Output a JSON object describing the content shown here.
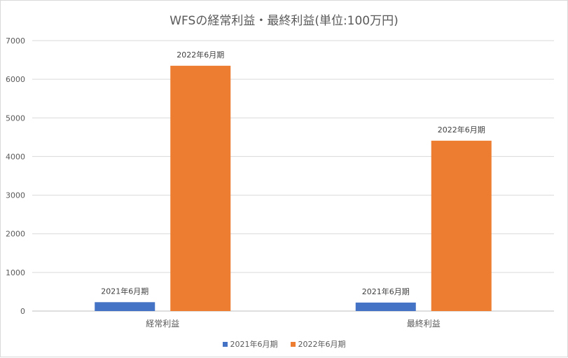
{
  "chart_data": {
    "type": "bar",
    "title": "WFSの経常利益・最終利益(単位:100万円)",
    "categories": [
      "経常利益",
      "最終利益"
    ],
    "series": [
      {
        "name": "2021年6月期",
        "values": [
          230,
          220
        ],
        "color": "#4472c4",
        "data_label": "2021年6月期"
      },
      {
        "name": "2022年6月期",
        "values": [
          6350,
          4410
        ],
        "color": "#ed7d31",
        "data_label": "2022年6月期"
      }
    ],
    "ylim": [
      0,
      7000
    ],
    "yticks": [
      0,
      1000,
      2000,
      3000,
      4000,
      5000,
      6000,
      7000
    ],
    "ytick_labels": [
      "0",
      "1000",
      "2000",
      "3000",
      "4000",
      "5000",
      "6000",
      "7000"
    ],
    "xlabel": "",
    "ylabel": "",
    "grid": true,
    "legend_position": "bottom"
  }
}
